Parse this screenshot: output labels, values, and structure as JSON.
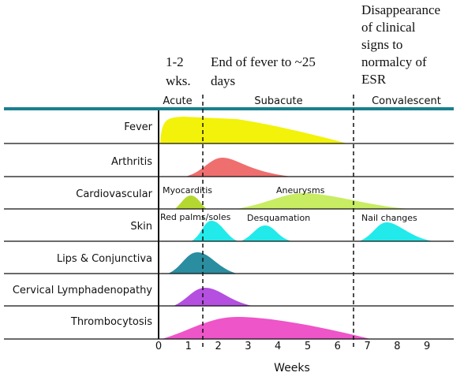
{
  "annotations": {
    "acute_duration": [
      "1-2",
      "wks."
    ],
    "subacute_duration": [
      "End of fever to ~25",
      "days"
    ],
    "convalescent_duration": [
      "Disappearance",
      "of clinical",
      "signs to",
      "normalcy of",
      "ESR"
    ]
  },
  "phases": [
    "Acute",
    "Subacute",
    "Convalescent"
  ],
  "rows": [
    "Fever",
    "Arthritis",
    "Cardiovascular",
    "Skin",
    "Lips & Conjunctiva",
    "Cervical Lymphadenopathy",
    "Thrombocytosis"
  ],
  "curve_labels": {
    "myocarditis": "Myocarditis",
    "aneurysms": "Aneurysms",
    "red_palms": "Red palms/soles",
    "desquamation": "Desquamation",
    "nail_changes": "Nail changes"
  },
  "x_axis": {
    "label": "Weeks",
    "ticks": [
      0,
      1,
      2,
      3,
      4,
      5,
      6,
      7,
      8,
      9
    ]
  }
}
